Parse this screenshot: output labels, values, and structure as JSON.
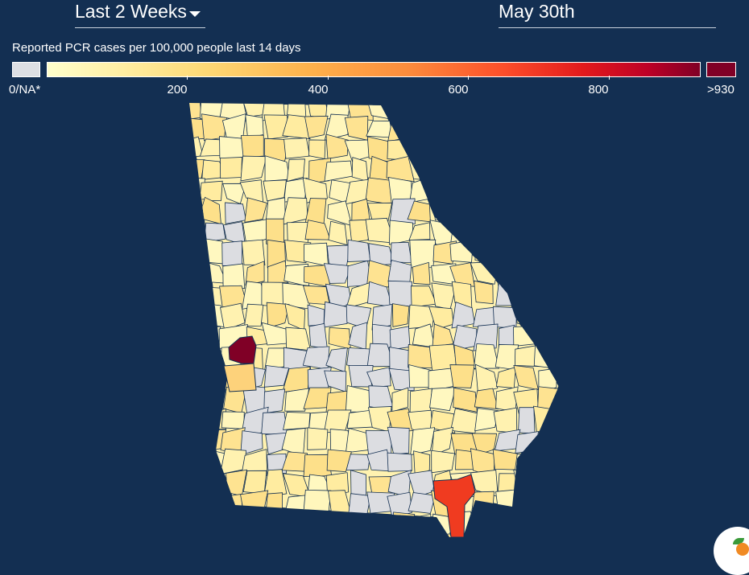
{
  "controls": {
    "period": "Last 2 Weeks",
    "date": "May 30th"
  },
  "legend": {
    "title": "Reported PCR cases per 100,000 people last 14 days",
    "na_label": "0/NA*",
    "max_label": ">930",
    "ticks": [
      "200",
      "400",
      "600",
      "800"
    ],
    "colors": {
      "na": "#dddfe3",
      "low": "#ffffcc",
      "max": "#800026",
      "border": "#132f52"
    }
  },
  "map": {
    "highlights": [
      {
        "area": "west-central county",
        "color": "#800026"
      },
      {
        "area": "southeast county",
        "color": "#f03b20"
      }
    ]
  }
}
